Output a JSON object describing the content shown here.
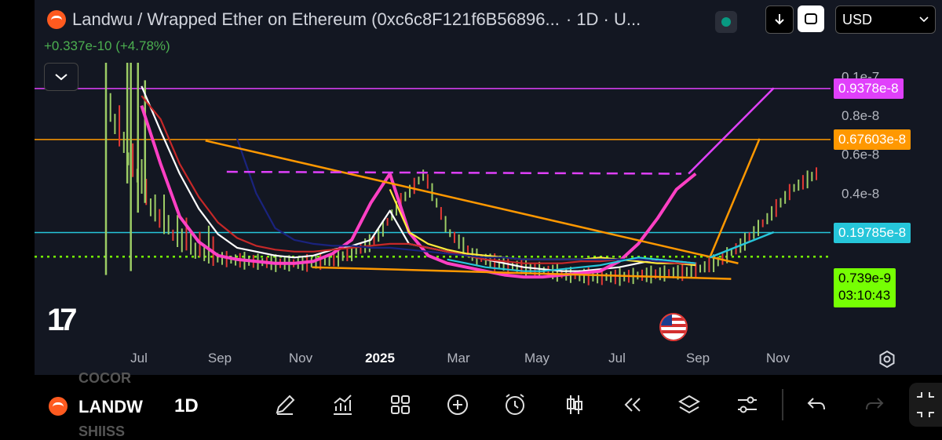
{
  "header": {
    "title": "Landwu / Wrapped Ether on Ethereum (0xc6c8F121f6B56896...",
    "interval": "· 1D · U...",
    "change": "+0.337e-10 (+4.78%)"
  },
  "toolbar": {
    "currency": "USD"
  },
  "price_levels": [
    {
      "label": "0.9378e-8",
      "value": 0.9378,
      "color": "#e040fb",
      "text_color": "#ffffff"
    },
    {
      "label": "0.67603e-8",
      "value": 0.67603,
      "color": "#ff9800",
      "text_color": "#ffffff"
    },
    {
      "label": "0.19785e-8",
      "value": 0.19785,
      "color": "#26c6da",
      "text_color": "#ffffff"
    }
  ],
  "last_price": {
    "label": "0.739e-9",
    "value": 0.0739,
    "countdown": "03:10:43",
    "color": "#76ff03"
  },
  "chart_data": {
    "type": "line",
    "y_unit": "e-8",
    "y_ticks": [
      {
        "label": "0.1e-7",
        "value": 1.0
      },
      {
        "label": "0.8e-8",
        "value": 0.8
      },
      {
        "label": "0.6e-8",
        "value": 0.6
      },
      {
        "label": "0.4e-8",
        "value": 0.4
      }
    ],
    "x_ticks": [
      "Jul",
      "Sep",
      "Nov",
      "2025",
      "Mar",
      "May",
      "Jul",
      "Sep",
      "Nov"
    ],
    "ylim": [
      -0.38,
      1.07
    ],
    "series": [
      {
        "color": "#ffffff",
        "values": [
          0.95,
          0.72,
          0.5,
          0.32,
          0.19,
          0.12,
          0.1,
          0.08,
          0.07,
          0.08,
          0.11,
          0.13,
          0.16,
          0.31,
          0.14,
          0.12,
          0.1,
          0.08,
          0.06,
          0.04,
          0.02,
          0.01,
          0.0,
          0.0,
          0.01,
          0.02,
          0.04,
          0.06,
          0.05,
          0.04
        ]
      },
      {
        "color": "#ff40c4",
        "values": [
          0.85,
          0.55,
          0.28,
          0.15,
          0.08,
          0.06,
          0.05,
          0.04,
          0.04,
          0.05,
          0.09,
          0.16,
          0.35,
          0.5,
          0.2,
          0.08,
          0.04,
          0.02,
          0.0,
          -0.02,
          -0.03,
          -0.03,
          -0.02,
          -0.01,
          0.0,
          0.05,
          0.14,
          0.27,
          0.42,
          0.5
        ]
      },
      {
        "color": "#ffeb3b",
        "values": [
          null,
          null,
          null,
          null,
          null,
          null,
          null,
          null,
          null,
          null,
          null,
          null,
          null,
          0.42,
          0.2,
          0.14,
          0.11,
          0.09,
          0.08,
          0.07,
          0.06,
          0.06,
          0.06,
          0.06,
          0.07,
          0.06,
          0.05,
          0.04,
          0.04,
          0.03
        ]
      },
      {
        "color": "#c62828",
        "values": [
          0.9,
          0.78,
          0.55,
          0.38,
          0.25,
          0.17,
          0.13,
          0.11,
          0.1,
          0.1,
          0.11,
          0.12,
          0.13,
          0.14,
          0.14,
          0.12,
          0.1,
          0.08,
          0.06,
          0.05,
          0.04,
          0.04,
          0.04,
          0.05,
          0.05,
          0.06,
          0.06,
          0.05,
          0.04,
          0.04
        ]
      },
      {
        "color": "#1a237e",
        "values": [
          null,
          null,
          null,
          null,
          null,
          0.68,
          0.4,
          0.22,
          0.16,
          0.14,
          0.13,
          0.13,
          0.12,
          0.12,
          0.11,
          0.1,
          0.09,
          0.08,
          0.07,
          0.07,
          0.06,
          0.06,
          0.06,
          0.06,
          0.06,
          0.06,
          0.06,
          0.05,
          0.05,
          0.04
        ]
      },
      {
        "color": "#26c6da",
        "values": [
          null,
          null,
          null,
          null,
          null,
          null,
          null,
          null,
          null,
          null,
          null,
          null,
          null,
          null,
          null,
          null,
          0.06,
          0.04,
          0.02,
          0.01,
          0.0,
          0.0,
          0.01,
          0.02,
          0.03,
          0.05,
          0.07,
          0.06,
          0.05,
          0.04
        ]
      }
    ],
    "drawings": [
      {
        "color": "#ff9800",
        "from": [
          0.14,
          0.67
        ],
        "to": [
          0.89,
          0.04
        ]
      },
      {
        "color": "#ff9800",
        "from": [
          0.29,
          0.02
        ],
        "to": [
          0.88,
          -0.04
        ]
      },
      {
        "color": "#e040fb",
        "dashed": true,
        "from": [
          0.17,
          0.51
        ],
        "to": [
          0.81,
          0.5
        ]
      },
      {
        "color": "#e040fb",
        "from": [
          0.82,
          0.5
        ],
        "to": [
          0.94,
          0.94
        ]
      },
      {
        "color": "#ff9800",
        "from": [
          0.85,
          0.07
        ],
        "to": [
          0.92,
          0.68
        ]
      },
      {
        "color": "#26c6da",
        "from": [
          0.85,
          0.07
        ],
        "to": [
          0.94,
          0.2
        ]
      }
    ]
  },
  "bottom_bar": {
    "symbol": "LANDW",
    "timeframe": "1D",
    "ghost_top": "COCOR",
    "ghost_bottom": "SHIISS"
  }
}
